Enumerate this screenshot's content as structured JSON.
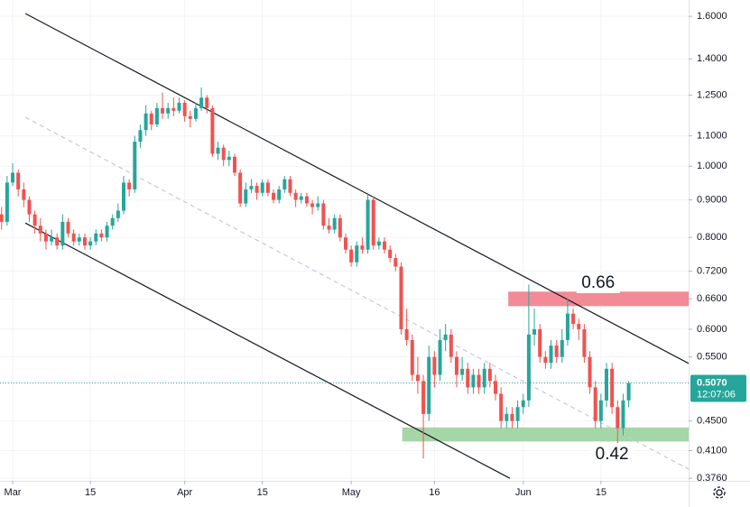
{
  "chart_data": {
    "type": "candlestick",
    "log_scale": true,
    "grid": true,
    "up_color": "#26a69a",
    "down_color": "#ef5350",
    "xlim": [
      -2.28,
      121.8
    ],
    "xticks": [
      {
        "value": 0,
        "label": "Mar"
      },
      {
        "value": 14,
        "label": "15"
      },
      {
        "value": 31,
        "label": "Apr"
      },
      {
        "value": 45,
        "label": "15"
      },
      {
        "value": 61,
        "label": "May"
      },
      {
        "value": 76,
        "label": "16"
      },
      {
        "value": 92,
        "label": "Jun"
      },
      {
        "value": 106,
        "label": "15"
      }
    ],
    "ylim": [
      0.373,
      1.684
    ],
    "yticks": [
      {
        "value": 1.6,
        "label": "1.6000"
      },
      {
        "value": 1.4,
        "label": "1.4000"
      },
      {
        "value": 1.25,
        "label": "1.2500"
      },
      {
        "value": 1.1,
        "label": "1.1000"
      },
      {
        "value": 1.0,
        "label": "1.0000"
      },
      {
        "value": 0.9,
        "label": "0.9000"
      },
      {
        "value": 0.8,
        "label": "0.8000"
      },
      {
        "value": 0.72,
        "label": "0.7200"
      },
      {
        "value": 0.66,
        "label": "0.6600"
      },
      {
        "value": 0.6,
        "label": "0.6000"
      },
      {
        "value": 0.55,
        "label": "0.5500"
      },
      {
        "value": 0.45,
        "label": "0.4500"
      },
      {
        "value": 0.41,
        "label": "0.4100"
      },
      {
        "value": 0.376,
        "label": "0.3760"
      }
    ],
    "x": [
      -2,
      -1,
      0,
      1,
      2,
      3,
      4,
      5,
      6,
      7,
      8,
      9,
      10,
      11,
      12,
      13,
      14,
      15,
      16,
      17,
      18,
      19,
      20,
      21,
      22,
      23,
      24,
      25,
      26,
      27,
      28,
      29,
      30,
      31,
      32,
      33,
      34,
      35,
      36,
      37,
      38,
      39,
      40,
      41,
      42,
      43,
      44,
      45,
      46,
      47,
      48,
      49,
      50,
      51,
      52,
      53,
      54,
      55,
      56,
      57,
      58,
      59,
      60,
      61,
      62,
      63,
      64,
      65,
      66,
      67,
      68,
      69,
      70,
      71,
      72,
      73,
      74,
      75,
      76,
      77,
      78,
      79,
      80,
      81,
      82,
      83,
      84,
      85,
      86,
      87,
      88,
      89,
      90,
      91,
      92,
      93,
      94,
      95,
      96,
      97,
      98,
      99,
      100,
      101,
      102,
      103,
      104,
      105,
      106,
      107,
      108,
      109,
      110,
      111
    ],
    "candles": [
      [
        0.86,
        0.88,
        0.82,
        0.84
      ],
      [
        0.84,
        0.97,
        0.83,
        0.95
      ],
      [
        0.95,
        1.01,
        0.94,
        0.98
      ],
      [
        0.98,
        0.99,
        0.91,
        0.93
      ],
      [
        0.93,
        0.95,
        0.88,
        0.9
      ],
      [
        0.9,
        0.91,
        0.84,
        0.86
      ],
      [
        0.86,
        0.87,
        0.81,
        0.83
      ],
      [
        0.83,
        0.85,
        0.79,
        0.81
      ],
      [
        0.81,
        0.82,
        0.77,
        0.79
      ],
      [
        0.79,
        0.82,
        0.78,
        0.8
      ],
      [
        0.8,
        0.81,
        0.77,
        0.78
      ],
      [
        0.78,
        0.86,
        0.77,
        0.84
      ],
      [
        0.84,
        0.85,
        0.8,
        0.81
      ],
      [
        0.81,
        0.82,
        0.78,
        0.79
      ],
      [
        0.79,
        0.81,
        0.78,
        0.8
      ],
      [
        0.8,
        0.81,
        0.77,
        0.78
      ],
      [
        0.78,
        0.8,
        0.77,
        0.79
      ],
      [
        0.79,
        0.82,
        0.78,
        0.81
      ],
      [
        0.81,
        0.82,
        0.79,
        0.8
      ],
      [
        0.8,
        0.84,
        0.79,
        0.83
      ],
      [
        0.83,
        0.86,
        0.82,
        0.85
      ],
      [
        0.85,
        0.89,
        0.84,
        0.87
      ],
      [
        0.87,
        0.97,
        0.86,
        0.95
      ],
      [
        0.95,
        0.96,
        0.91,
        0.93
      ],
      [
        0.93,
        1.1,
        0.92,
        1.08
      ],
      [
        1.08,
        1.14,
        1.06,
        1.12
      ],
      [
        1.12,
        1.21,
        1.1,
        1.18
      ],
      [
        1.18,
        1.19,
        1.12,
        1.14
      ],
      [
        1.14,
        1.22,
        1.13,
        1.2
      ],
      [
        1.2,
        1.26,
        1.16,
        1.18
      ],
      [
        1.18,
        1.22,
        1.16,
        1.2
      ],
      [
        1.2,
        1.24,
        1.17,
        1.19
      ],
      [
        1.19,
        1.24,
        1.18,
        1.22
      ],
      [
        1.22,
        1.23,
        1.15,
        1.17
      ],
      [
        1.17,
        1.19,
        1.13,
        1.16
      ],
      [
        1.16,
        1.22,
        1.15,
        1.2
      ],
      [
        1.2,
        1.28,
        1.19,
        1.24
      ],
      [
        1.24,
        1.25,
        1.18,
        1.2
      ],
      [
        1.2,
        1.21,
        1.03,
        1.04
      ],
      [
        1.04,
        1.08,
        1.02,
        1.06
      ],
      [
        1.06,
        1.07,
        1.0,
        1.02
      ],
      [
        1.02,
        1.05,
        1.0,
        1.03
      ],
      [
        1.03,
        1.04,
        0.97,
        0.98
      ],
      [
        0.98,
        0.99,
        0.88,
        0.89
      ],
      [
        0.89,
        0.95,
        0.88,
        0.93
      ],
      [
        0.93,
        0.96,
        0.92,
        0.94
      ],
      [
        0.94,
        0.95,
        0.9,
        0.92
      ],
      [
        0.92,
        0.96,
        0.91,
        0.95
      ],
      [
        0.95,
        0.96,
        0.91,
        0.92
      ],
      [
        0.92,
        0.93,
        0.89,
        0.9
      ],
      [
        0.9,
        0.94,
        0.89,
        0.93
      ],
      [
        0.93,
        0.97,
        0.92,
        0.96
      ],
      [
        0.96,
        0.97,
        0.91,
        0.92
      ],
      [
        0.92,
        0.93,
        0.88,
        0.9
      ],
      [
        0.9,
        0.92,
        0.89,
        0.91
      ],
      [
        0.91,
        0.92,
        0.88,
        0.89
      ],
      [
        0.89,
        0.9,
        0.86,
        0.88
      ],
      [
        0.88,
        0.91,
        0.87,
        0.89
      ],
      [
        0.89,
        0.9,
        0.82,
        0.83
      ],
      [
        0.83,
        0.85,
        0.81,
        0.82
      ],
      [
        0.82,
        0.86,
        0.81,
        0.85
      ],
      [
        0.85,
        0.86,
        0.79,
        0.8
      ],
      [
        0.8,
        0.81,
        0.76,
        0.77
      ],
      [
        0.77,
        0.78,
        0.73,
        0.74
      ],
      [
        0.74,
        0.79,
        0.73,
        0.78
      ],
      [
        0.78,
        0.8,
        0.76,
        0.77
      ],
      [
        0.77,
        0.92,
        0.76,
        0.9
      ],
      [
        0.9,
        0.91,
        0.77,
        0.78
      ],
      [
        0.78,
        0.8,
        0.77,
        0.79
      ],
      [
        0.79,
        0.8,
        0.76,
        0.77
      ],
      [
        0.77,
        0.78,
        0.74,
        0.75
      ],
      [
        0.75,
        0.76,
        0.72,
        0.73
      ],
      [
        0.73,
        0.74,
        0.59,
        0.6
      ],
      [
        0.6,
        0.64,
        0.57,
        0.58
      ],
      [
        0.58,
        0.59,
        0.51,
        0.52
      ],
      [
        0.52,
        0.55,
        0.49,
        0.51
      ],
      [
        0.51,
        0.52,
        0.4,
        0.46
      ],
      [
        0.46,
        0.57,
        0.45,
        0.55
      ],
      [
        0.55,
        0.56,
        0.5,
        0.52
      ],
      [
        0.52,
        0.6,
        0.51,
        0.58
      ],
      [
        0.58,
        0.61,
        0.56,
        0.59
      ],
      [
        0.59,
        0.6,
        0.54,
        0.55
      ],
      [
        0.55,
        0.56,
        0.5,
        0.52
      ],
      [
        0.52,
        0.55,
        0.51,
        0.53
      ],
      [
        0.53,
        0.54,
        0.49,
        0.5
      ],
      [
        0.5,
        0.53,
        0.49,
        0.52
      ],
      [
        0.52,
        0.53,
        0.49,
        0.5
      ],
      [
        0.5,
        0.54,
        0.49,
        0.53
      ],
      [
        0.53,
        0.54,
        0.5,
        0.51
      ],
      [
        0.51,
        0.52,
        0.48,
        0.49
      ],
      [
        0.49,
        0.5,
        0.44,
        0.45
      ],
      [
        0.45,
        0.47,
        0.44,
        0.46
      ],
      [
        0.46,
        0.47,
        0.44,
        0.45
      ],
      [
        0.45,
        0.48,
        0.44,
        0.47
      ],
      [
        0.47,
        0.49,
        0.46,
        0.48
      ],
      [
        0.48,
        0.69,
        0.47,
        0.59
      ],
      [
        0.59,
        0.64,
        0.57,
        0.6
      ],
      [
        0.6,
        0.61,
        0.54,
        0.55
      ],
      [
        0.55,
        0.56,
        0.53,
        0.54
      ],
      [
        0.54,
        0.58,
        0.53,
        0.57
      ],
      [
        0.57,
        0.58,
        0.54,
        0.55
      ],
      [
        0.55,
        0.6,
        0.54,
        0.58
      ],
      [
        0.58,
        0.66,
        0.57,
        0.63
      ],
      [
        0.63,
        0.64,
        0.6,
        0.61
      ],
      [
        0.61,
        0.62,
        0.58,
        0.6
      ],
      [
        0.6,
        0.61,
        0.54,
        0.55
      ],
      [
        0.55,
        0.56,
        0.49,
        0.5
      ],
      [
        0.5,
        0.51,
        0.44,
        0.45
      ],
      [
        0.45,
        0.49,
        0.44,
        0.48
      ],
      [
        0.48,
        0.54,
        0.47,
        0.53
      ],
      [
        0.53,
        0.54,
        0.46,
        0.47
      ],
      [
        0.47,
        0.48,
        0.42,
        0.44
      ],
      [
        0.44,
        0.49,
        0.43,
        0.48
      ],
      [
        0.48,
        0.51,
        0.47,
        0.507
      ]
    ],
    "trendlines": [
      {
        "points": [
          [
            2.28,
            1.614
          ],
          [
            121.8,
            0.539
          ]
        ],
        "color": "#131722",
        "dashed": false
      },
      {
        "points": [
          [
            2.28,
            0.837
          ],
          [
            89.6,
            0.376
          ]
        ],
        "color": "#131722",
        "dashed": false
      },
      {
        "points": [
          [
            2.28,
            1.166
          ],
          [
            121.8,
            0.387
          ]
        ],
        "color": "#c8cbd2",
        "dashed": true
      }
    ],
    "zones": [
      {
        "x0": 89.3,
        "top": 0.675,
        "bottom": 0.645,
        "color": "#f28b95",
        "label": "0.66",
        "label_at": [
          105.5,
          0.695
        ]
      },
      {
        "x0": 70.2,
        "top": 0.441,
        "bottom": 0.422,
        "color": "#a5d6a7",
        "label": "0.42",
        "label_at": [
          108.0,
          0.406
        ]
      }
    ],
    "last_price": {
      "value": 0.507,
      "label": "0.5070"
    },
    "countdown": "12:07:06"
  }
}
